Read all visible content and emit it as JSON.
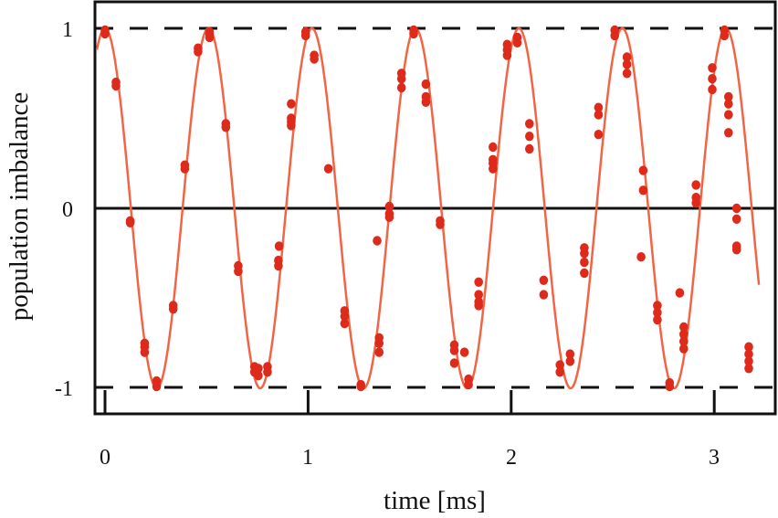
{
  "chart_data": {
    "type": "scatter",
    "title": "",
    "xlabel": "time [ms]",
    "ylabel": "population imbalance",
    "xlim": [
      -0.05,
      3.22
    ],
    "ylim": [
      -1.13,
      1.15
    ],
    "xticks": [
      0,
      1,
      2,
      3
    ],
    "xtick_labels": [
      "0",
      "1",
      "2",
      "3"
    ],
    "yticks": [
      1,
      0,
      -1
    ],
    "ytick_labels": [
      "1",
      "0",
      "-1"
    ],
    "grid": false,
    "reference_lines": [
      {
        "y": 1,
        "style": "dashed"
      },
      {
        "y": 0,
        "style": "solid"
      },
      {
        "y": -1,
        "style": "dashed"
      }
    ],
    "fit": {
      "model": "cos(2*pi*t/T)",
      "amplitude": 1.0,
      "period_ms": 0.5095,
      "phase": 0,
      "color": "#f26544"
    },
    "marker_color": "#dd2a1b",
    "series": [
      {
        "name": "measured",
        "points": [
          [
            0.0,
            0.99
          ],
          [
            0.0,
            0.97
          ],
          [
            0.054,
            0.7
          ],
          [
            0.054,
            0.68
          ],
          [
            0.124,
            -0.07
          ],
          [
            0.124,
            -0.08
          ],
          [
            0.195,
            -0.75
          ],
          [
            0.195,
            -0.77
          ],
          [
            0.195,
            -0.8
          ],
          [
            0.254,
            -0.96
          ],
          [
            0.254,
            -0.99
          ],
          [
            0.336,
            -0.54
          ],
          [
            0.336,
            -0.56
          ],
          [
            0.393,
            0.24
          ],
          [
            0.393,
            0.22
          ],
          [
            0.458,
            0.89
          ],
          [
            0.458,
            0.87
          ],
          [
            0.515,
            0.97
          ],
          [
            0.515,
            0.95
          ],
          [
            0.515,
            0.98
          ],
          [
            0.595,
            0.47
          ],
          [
            0.595,
            0.45
          ],
          [
            0.656,
            -0.32
          ],
          [
            0.656,
            -0.35
          ],
          [
            0.736,
            -0.88
          ],
          [
            0.736,
            -0.91
          ],
          [
            0.755,
            -0.89
          ],
          [
            0.755,
            -0.93
          ],
          [
            0.8,
            -0.88
          ],
          [
            0.8,
            -0.91
          ],
          [
            0.854,
            -0.29
          ],
          [
            0.854,
            -0.32
          ],
          [
            0.857,
            -0.21
          ],
          [
            0.917,
            0.48
          ],
          [
            0.917,
            0.5
          ],
          [
            0.917,
            0.58
          ],
          [
            0.917,
            0.46
          ],
          [
            0.988,
            0.98
          ],
          [
            0.988,
            0.96
          ],
          [
            1.03,
            0.85
          ],
          [
            1.03,
            0.83
          ],
          [
            1.1,
            0.22
          ],
          [
            1.18,
            -0.57
          ],
          [
            1.18,
            -0.6
          ],
          [
            1.18,
            -0.64
          ],
          [
            1.26,
            -0.98
          ],
          [
            1.26,
            -0.99
          ],
          [
            1.35,
            -0.75
          ],
          [
            1.35,
            -0.72
          ],
          [
            1.35,
            -0.8
          ],
          [
            1.34,
            -0.18
          ],
          [
            1.4,
            0.01
          ],
          [
            1.4,
            -0.03
          ],
          [
            1.4,
            -0.05
          ],
          [
            1.46,
            0.75
          ],
          [
            1.46,
            0.72
          ],
          [
            1.46,
            0.67
          ],
          [
            1.52,
            0.99
          ],
          [
            1.52,
            0.97
          ],
          [
            1.58,
            0.62
          ],
          [
            1.58,
            0.59
          ],
          [
            1.58,
            0.69
          ],
          [
            1.65,
            -0.07
          ],
          [
            1.65,
            -0.09
          ],
          [
            1.72,
            -0.76
          ],
          [
            1.72,
            -0.79
          ],
          [
            1.72,
            -0.86
          ],
          [
            1.77,
            -0.8
          ],
          [
            1.79,
            -0.95
          ],
          [
            1.79,
            -0.98
          ],
          [
            1.84,
            -0.41
          ],
          [
            1.84,
            -0.48
          ],
          [
            1.84,
            -0.52
          ],
          [
            1.84,
            -0.54
          ],
          [
            1.91,
            0.34
          ],
          [
            1.91,
            0.27
          ],
          [
            1.91,
            0.25
          ],
          [
            1.91,
            0.22
          ],
          [
            1.98,
            0.91
          ],
          [
            1.98,
            0.88
          ],
          [
            1.98,
            0.85
          ],
          [
            2.03,
            0.95
          ],
          [
            2.03,
            0.92
          ],
          [
            2.09,
            0.47
          ],
          [
            2.09,
            0.4
          ],
          [
            2.09,
            0.33
          ],
          [
            2.16,
            -0.4
          ],
          [
            2.16,
            -0.48
          ],
          [
            2.24,
            -0.87
          ],
          [
            2.24,
            -0.91
          ],
          [
            2.29,
            -0.81
          ],
          [
            2.29,
            -0.85
          ],
          [
            2.36,
            -0.22
          ],
          [
            2.36,
            -0.25
          ],
          [
            2.36,
            -0.3
          ],
          [
            2.36,
            -0.36
          ],
          [
            2.43,
            0.56
          ],
          [
            2.43,
            0.52
          ],
          [
            2.43,
            0.41
          ],
          [
            2.51,
            0.99
          ],
          [
            2.51,
            0.96
          ],
          [
            2.57,
            0.84
          ],
          [
            2.57,
            0.8
          ],
          [
            2.57,
            0.75
          ],
          [
            2.65,
            0.21
          ],
          [
            2.65,
            0.1
          ],
          [
            2.64,
            -0.27
          ],
          [
            2.72,
            -0.54
          ],
          [
            2.72,
            -0.58
          ],
          [
            2.72,
            -0.62
          ],
          [
            2.78,
            -0.97
          ],
          [
            2.78,
            -0.99
          ],
          [
            2.85,
            -0.66
          ],
          [
            2.85,
            -0.7
          ],
          [
            2.85,
            -0.74
          ],
          [
            2.85,
            -0.78
          ],
          [
            2.83,
            -0.47
          ],
          [
            2.91,
            0.13
          ],
          [
            2.91,
            0.06
          ],
          [
            2.91,
            0.03
          ],
          [
            2.99,
            0.78
          ],
          [
            2.99,
            0.72
          ],
          [
            2.99,
            0.66
          ],
          [
            3.05,
            0.99
          ],
          [
            3.05,
            0.96
          ],
          [
            3.07,
            0.62
          ],
          [
            3.07,
            0.58
          ],
          [
            3.07,
            0.52
          ],
          [
            3.07,
            0.42
          ],
          [
            3.11,
            0.0
          ],
          [
            3.11,
            -0.06
          ],
          [
            3.11,
            -0.21
          ],
          [
            3.11,
            -0.23
          ],
          [
            3.17,
            -0.77
          ],
          [
            3.17,
            -0.81
          ],
          [
            3.17,
            -0.85
          ],
          [
            3.17,
            -0.89
          ]
        ]
      }
    ]
  },
  "axes": {
    "x_label": "time [ms]",
    "y_label": "population imbalance",
    "x_tick_labels": [
      "0",
      "1",
      "2",
      "3"
    ],
    "y_tick_labels": [
      "1",
      "0",
      "-1"
    ]
  }
}
